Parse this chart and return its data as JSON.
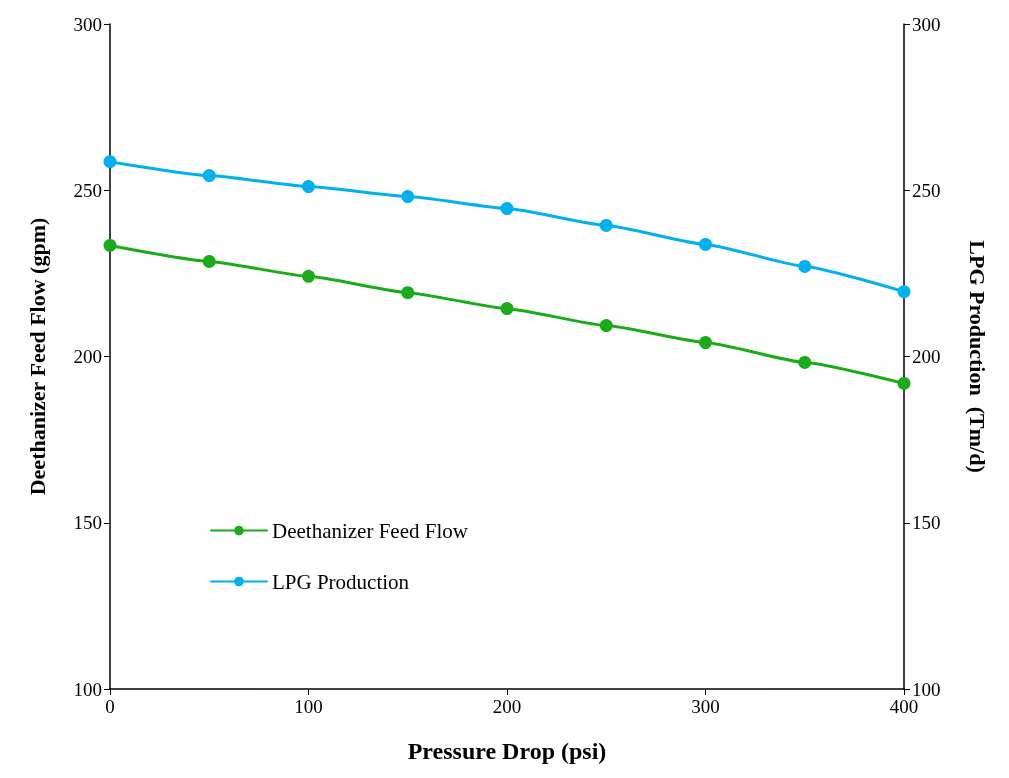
{
  "chart_data": {
    "type": "line",
    "xlabel": "Pressure Drop (psi)",
    "ylabel": "Deethanizer Feed Flow (gpm)",
    "y2label": "LPG Production  (Tm/d)",
    "x": [
      0,
      50,
      100,
      150,
      200,
      250,
      300,
      350,
      400
    ],
    "series": [
      {
        "name": "Deethanizer Feed Flow",
        "color": "#1aab1a",
        "values": [
          233.4,
          228.6,
          224.1,
          219.2,
          214.4,
          209.3,
          204.2,
          198.2,
          191.9
        ]
      },
      {
        "name": "LPG Production",
        "color": "#00b0f0",
        "axis": "y2",
        "values": [
          258.6,
          254.4,
          251.1,
          248.1,
          244.5,
          239.4,
          233.7,
          227.1,
          219.5
        ]
      }
    ],
    "xlim": [
      0,
      400
    ],
    "xticks": [
      0,
      100,
      200,
      300,
      400
    ],
    "ylim": [
      100,
      300
    ],
    "yticks": [
      100,
      150,
      200,
      250,
      300
    ],
    "y2lim": [
      100,
      300
    ],
    "y2ticks": [
      100,
      150,
      200,
      250,
      300
    ],
    "grid": false,
    "legend": "left",
    "marker": "circle",
    "line_style": "solid"
  }
}
